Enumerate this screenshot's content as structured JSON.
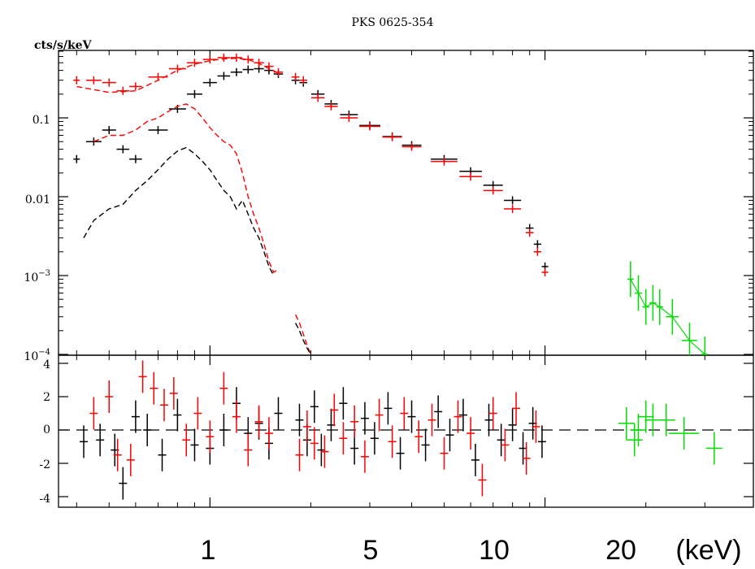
{
  "chart_data": {
    "type": "scatter",
    "title": "PKS 0625-354",
    "xlabel": "(keV)",
    "x_scale": "log",
    "x_ticks": [
      "1",
      "5",
      "10",
      "20"
    ],
    "panels": [
      {
        "name": "spectrum",
        "ylabel": "cts/s/keV",
        "y_scale": "log",
        "ylim": [
          0.0001,
          0.7
        ],
        "y_ticks": [
          "0.1",
          "0.01",
          "10^-3",
          "10^-4"
        ],
        "series": [
          {
            "color": "#000000",
            "style": "data",
            "points": [
              [
                0.4,
                0.03
              ],
              [
                0.45,
                0.05
              ],
              [
                0.5,
                0.07
              ],
              [
                0.55,
                0.04
              ],
              [
                0.6,
                0.03
              ],
              [
                0.7,
                0.07
              ],
              [
                0.8,
                0.13
              ],
              [
                0.9,
                0.2
              ],
              [
                1.0,
                0.28
              ],
              [
                1.1,
                0.34
              ],
              [
                1.2,
                0.38
              ],
              [
                1.3,
                0.41
              ],
              [
                1.4,
                0.42
              ],
              [
                1.5,
                0.4
              ],
              [
                1.6,
                0.36
              ],
              [
                1.8,
                0.3
              ],
              [
                1.9,
                0.28
              ],
              [
                2.1,
                0.2
              ],
              [
                2.3,
                0.15
              ],
              [
                2.6,
                0.11
              ],
              [
                3.0,
                0.08
              ],
              [
                3.5,
                0.058
              ],
              [
                4.0,
                0.045
              ],
              [
                5.0,
                0.03
              ],
              [
                6.0,
                0.021
              ],
              [
                7.0,
                0.014
              ],
              [
                8.0,
                0.009
              ],
              [
                9.0,
                0.004
              ],
              [
                9.5,
                0.0025
              ],
              [
                10.0,
                0.0013
              ]
            ]
          },
          {
            "color": "#ff0000",
            "style": "data",
            "points": [
              [
                0.4,
                0.3
              ],
              [
                0.45,
                0.3
              ],
              [
                0.5,
                0.28
              ],
              [
                0.55,
                0.22
              ],
              [
                0.6,
                0.25
              ],
              [
                0.7,
                0.33
              ],
              [
                0.8,
                0.42
              ],
              [
                0.9,
                0.5
              ],
              [
                1.0,
                0.55
              ],
              [
                1.1,
                0.58
              ],
              [
                1.2,
                0.58
              ],
              [
                1.3,
                0.55
              ],
              [
                1.4,
                0.5
              ],
              [
                1.5,
                0.45
              ],
              [
                1.6,
                0.38
              ],
              [
                1.8,
                0.33
              ],
              [
                1.9,
                0.3
              ],
              [
                2.1,
                0.18
              ],
              [
                2.3,
                0.14
              ],
              [
                2.6,
                0.1
              ],
              [
                3.0,
                0.078
              ],
              [
                3.5,
                0.057
              ],
              [
                4.0,
                0.043
              ],
              [
                5.0,
                0.028
              ],
              [
                6.0,
                0.018
              ],
              [
                7.0,
                0.012
              ],
              [
                8.0,
                0.007
              ],
              [
                9.0,
                0.0035
              ],
              [
                9.5,
                0.002
              ],
              [
                10.0,
                0.0011
              ]
            ]
          },
          {
            "color": "#ff0000",
            "style": "model",
            "points": [
              [
                0.4,
                0.25
              ],
              [
                0.5,
                0.21
              ],
              [
                0.6,
                0.22
              ],
              [
                0.7,
                0.3
              ],
              [
                0.8,
                0.4
              ],
              [
                0.9,
                0.48
              ],
              [
                1.0,
                0.53
              ],
              [
                1.1,
                0.56
              ],
              [
                1.2,
                0.57
              ],
              [
                1.3,
                0.55
              ],
              [
                1.4,
                0.49
              ],
              [
                1.6,
                0.37
              ]
            ]
          },
          {
            "color": "#ff0000",
            "style": "model",
            "points": [
              [
                0.45,
                0.05
              ],
              [
                0.5,
                0.06
              ],
              [
                0.55,
                0.06
              ],
              [
                0.6,
                0.07
              ],
              [
                0.65,
                0.09
              ],
              [
                0.7,
                0.1
              ],
              [
                0.75,
                0.12
              ],
              [
                0.8,
                0.14
              ],
              [
                0.85,
                0.15
              ],
              [
                0.9,
                0.13
              ],
              [
                0.95,
                0.1
              ],
              [
                1.0,
                0.075
              ],
              [
                1.05,
                0.06
              ],
              [
                1.1,
                0.05
              ],
              [
                1.15,
                0.045
              ],
              [
                1.2,
                0.035
              ],
              [
                1.25,
                0.02
              ],
              [
                1.3,
                0.01
              ],
              [
                1.35,
                0.006
              ],
              [
                1.4,
                0.004
              ],
              [
                1.45,
                0.0025
              ],
              [
                1.5,
                0.0015
              ],
              [
                1.55,
                0.0011
              ],
              [
                1.6,
                0.0012
              ]
            ]
          },
          {
            "color": "#ff0000",
            "style": "model",
            "points": [
              [
                1.8,
                0.00032
              ],
              [
                1.85,
                0.00025
              ],
              [
                1.9,
                0.00018
              ],
              [
                1.95,
                0.00013
              ],
              [
                2.0,
                0.0001
              ]
            ]
          },
          {
            "color": "#000000",
            "style": "model",
            "points": [
              [
                0.42,
                0.003
              ],
              [
                0.45,
                0.005
              ],
              [
                0.5,
                0.007
              ],
              [
                0.55,
                0.008
              ],
              [
                0.6,
                0.012
              ],
              [
                0.65,
                0.016
              ],
              [
                0.7,
                0.022
              ],
              [
                0.75,
                0.03
              ],
              [
                0.8,
                0.038
              ],
              [
                0.85,
                0.042
              ],
              [
                0.9,
                0.035
              ],
              [
                0.95,
                0.028
              ],
              [
                1.0,
                0.022
              ],
              [
                1.05,
                0.016
              ],
              [
                1.1,
                0.012
              ],
              [
                1.15,
                0.01
              ],
              [
                1.2,
                0.007
              ],
              [
                1.25,
                0.009
              ],
              [
                1.3,
                0.006
              ],
              [
                1.35,
                0.004
              ],
              [
                1.4,
                0.003
              ],
              [
                1.45,
                0.002
              ],
              [
                1.5,
                0.0013
              ],
              [
                1.55,
                0.001
              ]
            ]
          },
          {
            "color": "#000000",
            "style": "model",
            "points": [
              [
                1.8,
                0.00025
              ],
              [
                1.85,
                0.0002
              ],
              [
                1.9,
                0.00015
              ],
              [
                1.95,
                0.00012
              ],
              [
                2.0,
                0.0001
              ]
            ]
          },
          {
            "color": "#00dd00",
            "style": "data",
            "points": [
              [
                18.0,
                0.0009
              ],
              [
                19.0,
                0.0006
              ],
              [
                20.0,
                0.0004
              ],
              [
                21.0,
                0.00045
              ],
              [
                22.0,
                0.0004
              ],
              [
                24.0,
                0.0003
              ],
              [
                27.0,
                0.00015
              ],
              [
                30.0,
                0.0001
              ]
            ]
          }
        ]
      },
      {
        "name": "residuals",
        "ylim": [
          -4.5,
          4.5
        ],
        "y_ticks": [
          "4",
          "2",
          "0",
          "-2",
          "-4"
        ],
        "series": [
          {
            "color": "#000000",
            "style": "residual",
            "points": [
              [
                0.42,
                -0.7
              ],
              [
                0.47,
                -0.6
              ],
              [
                0.52,
                -1.2
              ],
              [
                0.55,
                -3.2
              ],
              [
                0.6,
                0.8
              ],
              [
                0.65,
                0.0
              ],
              [
                0.72,
                -1.5
              ],
              [
                0.8,
                0.9
              ],
              [
                0.9,
                -0.9
              ],
              [
                1.0,
                -1.1
              ],
              [
                1.1,
                0.0
              ],
              [
                1.2,
                1.6
              ],
              [
                1.3,
                -0.2
              ],
              [
                1.4,
                0.4
              ],
              [
                1.5,
                -0.8
              ],
              [
                1.6,
                1.0
              ],
              [
                1.85,
                0.6
              ],
              [
                1.95,
                -0.6
              ],
              [
                2.05,
                1.4
              ],
              [
                2.15,
                -1.2
              ],
              [
                2.3,
                0.3
              ],
              [
                2.5,
                1.6
              ],
              [
                2.7,
                -1.1
              ],
              [
                2.9,
                0.7
              ],
              [
                3.1,
                -0.5
              ],
              [
                3.4,
                1.3
              ],
              [
                3.7,
                -1.4
              ],
              [
                4.0,
                0.8
              ],
              [
                4.4,
                -0.9
              ],
              [
                4.8,
                1.1
              ],
              [
                5.2,
                -0.3
              ],
              [
                5.7,
                0.9
              ],
              [
                6.2,
                -1.8
              ],
              [
                6.8,
                0.6
              ],
              [
                7.4,
                -0.6
              ],
              [
                8.0,
                0.3
              ],
              [
                8.6,
                -1.1
              ],
              [
                9.2,
                0.4
              ],
              [
                9.8,
                -0.7
              ]
            ]
          },
          {
            "color": "#ff0000",
            "style": "residual",
            "points": [
              [
                0.45,
                1.0
              ],
              [
                0.5,
                2.0
              ],
              [
                0.53,
                -1.5
              ],
              [
                0.58,
                -1.8
              ],
              [
                0.63,
                3.2
              ],
              [
                0.68,
                2.5
              ],
              [
                0.73,
                1.5
              ],
              [
                0.78,
                2.2
              ],
              [
                0.85,
                -0.6
              ],
              [
                0.92,
                1.0
              ],
              [
                1.0,
                -0.4
              ],
              [
                1.1,
                2.5
              ],
              [
                1.2,
                0.8
              ],
              [
                1.3,
                -1.2
              ],
              [
                1.4,
                0.5
              ],
              [
                1.5,
                -0.2
              ],
              [
                1.85,
                -1.5
              ],
              [
                1.95,
                0.2
              ],
              [
                2.05,
                -0.8
              ],
              [
                2.2,
                -1.3
              ],
              [
                2.35,
                1.2
              ],
              [
                2.5,
                -0.5
              ],
              [
                2.7,
                0.5
              ],
              [
                2.9,
                -1.6
              ],
              [
                3.2,
                0.9
              ],
              [
                3.5,
                -0.7
              ],
              [
                3.8,
                1.0
              ],
              [
                4.2,
                -0.4
              ],
              [
                4.6,
                0.6
              ],
              [
                5.0,
                -1.4
              ],
              [
                5.5,
                0.8
              ],
              [
                6.0,
                -0.2
              ],
              [
                6.5,
                -3.0
              ],
              [
                7.0,
                1.0
              ],
              [
                7.6,
                -0.9
              ],
              [
                8.2,
                1.3
              ],
              [
                8.8,
                -1.7
              ],
              [
                9.4,
                0.2
              ]
            ]
          },
          {
            "color": "#00dd00",
            "style": "residual",
            "points": [
              [
                17.5,
                0.4
              ],
              [
                18.5,
                -0.6
              ],
              [
                19.0,
                0.0
              ],
              [
                20.0,
                0.8
              ],
              [
                21.0,
                0.6
              ],
              [
                23.0,
                0.6
              ],
              [
                26.0,
                -0.2
              ],
              [
                32.0,
                -1.1
              ]
            ]
          }
        ]
      }
    ]
  }
}
